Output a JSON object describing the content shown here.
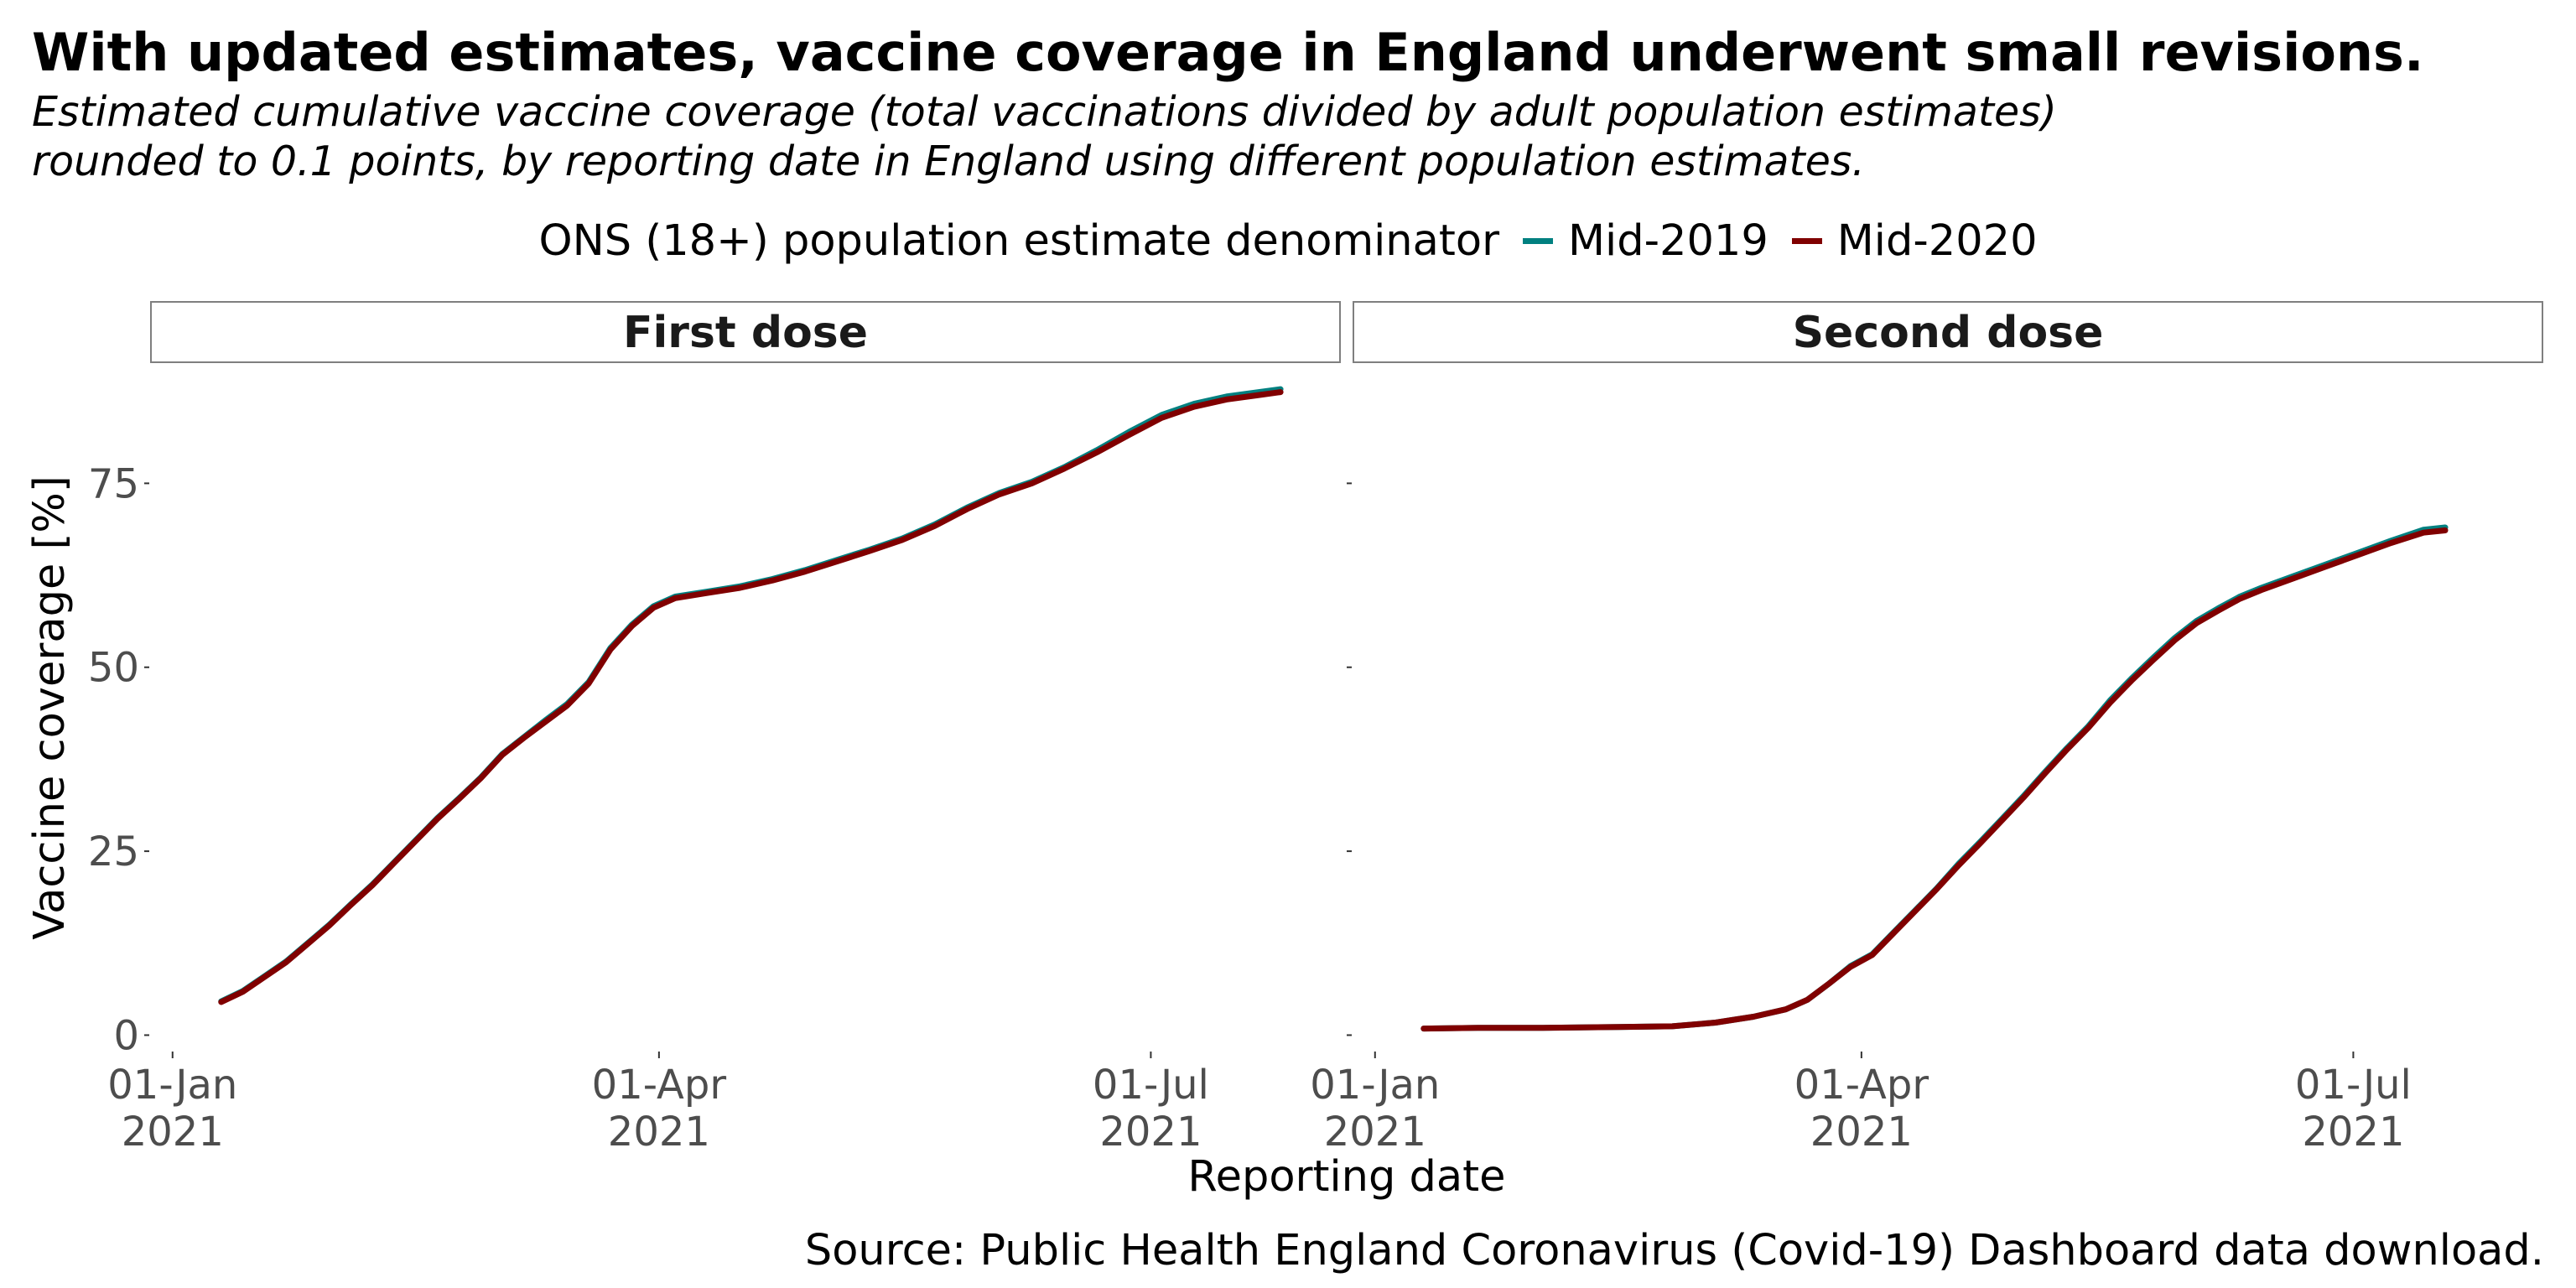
{
  "title": "With updated estimates, vaccine coverage in England underwent small revisions.",
  "subtitle_lines": [
    "Estimated cumulative vaccine coverage (total vaccinations divided by adult population estimates)",
    "rounded to 0.1 points, by reporting date in England using different population estimates."
  ],
  "legend": {
    "title": "ONS (18+) population estimate denominator",
    "items": [
      {
        "label": "Mid-2019",
        "color": "#008080"
      },
      {
        "label": "Mid-2020",
        "color": "#800000"
      }
    ]
  },
  "source": "Source: Public Health England Coronavirus (Covid-19) Dashboard data download.",
  "chart_data": {
    "type": "line",
    "xlabel": "Reporting date",
    "ylabel": "Vaccine coverage [%]",
    "ylim": [
      -2,
      91
    ],
    "y_ticks": [
      0,
      25,
      50,
      75
    ],
    "x_ticks": [
      {
        "date": "2021-01-01",
        "label_top": "01-Jan",
        "label_bottom": "2021"
      },
      {
        "date": "2021-04-01",
        "label_top": "01-Apr",
        "label_bottom": "2021"
      },
      {
        "date": "2021-07-01",
        "label_top": "01-Jul",
        "label_bottom": "2021"
      }
    ],
    "xlim": [
      "2020-12-28",
      "2021-08-05"
    ],
    "grid": false,
    "legend_position": "top",
    "panels": [
      {
        "name": "First dose",
        "series": [
          {
            "name": "Mid-2019",
            "color": "#008080",
            "points": [
              [
                "2021-01-10",
                4.6
              ],
              [
                "2021-01-14",
                6.0
              ],
              [
                "2021-01-18",
                8.0
              ],
              [
                "2021-01-22",
                10.0
              ],
              [
                "2021-01-26",
                12.5
              ],
              [
                "2021-01-30",
                15.0
              ],
              [
                "2021-02-03",
                17.8
              ],
              [
                "2021-02-07",
                20.5
              ],
              [
                "2021-02-11",
                23.5
              ],
              [
                "2021-02-15",
                26.5
              ],
              [
                "2021-02-19",
                29.5
              ],
              [
                "2021-02-23",
                32.2
              ],
              [
                "2021-02-27",
                35.0
              ],
              [
                "2021-03-03",
                38.2
              ],
              [
                "2021-03-07",
                40.5
              ],
              [
                "2021-03-11",
                42.8
              ],
              [
                "2021-03-15",
                45.0
              ],
              [
                "2021-03-19",
                48.0
              ],
              [
                "2021-03-23",
                52.6
              ],
              [
                "2021-03-27",
                55.8
              ],
              [
                "2021-03-31",
                58.3
              ],
              [
                "2021-04-04",
                59.6
              ],
              [
                "2021-04-10",
                60.3
              ],
              [
                "2021-04-16",
                61.0
              ],
              [
                "2021-04-22",
                62.0
              ],
              [
                "2021-04-28",
                63.2
              ],
              [
                "2021-05-04",
                64.6
              ],
              [
                "2021-05-10",
                66.0
              ],
              [
                "2021-05-16",
                67.5
              ],
              [
                "2021-05-22",
                69.4
              ],
              [
                "2021-05-28",
                71.7
              ],
              [
                "2021-06-03",
                73.7
              ],
              [
                "2021-06-09",
                75.2
              ],
              [
                "2021-06-15",
                77.2
              ],
              [
                "2021-06-21",
                79.5
              ],
              [
                "2021-06-27",
                82.0
              ],
              [
                "2021-07-03",
                84.3
              ],
              [
                "2021-07-09",
                85.8
              ],
              [
                "2021-07-15",
                86.8
              ],
              [
                "2021-07-21",
                87.4
              ],
              [
                "2021-07-25",
                87.8
              ]
            ]
          },
          {
            "name": "Mid-2020",
            "color": "#800000",
            "points": [
              [
                "2021-01-10",
                4.5
              ],
              [
                "2021-01-14",
                5.9
              ],
              [
                "2021-01-18",
                7.9
              ],
              [
                "2021-01-22",
                9.9
              ],
              [
                "2021-01-26",
                12.4
              ],
              [
                "2021-01-30",
                14.9
              ],
              [
                "2021-02-03",
                17.7
              ],
              [
                "2021-02-07",
                20.4
              ],
              [
                "2021-02-11",
                23.4
              ],
              [
                "2021-02-15",
                26.4
              ],
              [
                "2021-02-19",
                29.4
              ],
              [
                "2021-02-23",
                32.1
              ],
              [
                "2021-02-27",
                34.9
              ],
              [
                "2021-03-03",
                38.1
              ],
              [
                "2021-03-07",
                40.4
              ],
              [
                "2021-03-11",
                42.6
              ],
              [
                "2021-03-15",
                44.8
              ],
              [
                "2021-03-19",
                47.8
              ],
              [
                "2021-03-23",
                52.4
              ],
              [
                "2021-03-27",
                55.6
              ],
              [
                "2021-03-31",
                58.1
              ],
              [
                "2021-04-04",
                59.4
              ],
              [
                "2021-04-10",
                60.1
              ],
              [
                "2021-04-16",
                60.8
              ],
              [
                "2021-04-22",
                61.8
              ],
              [
                "2021-04-28",
                63.0
              ],
              [
                "2021-05-04",
                64.4
              ],
              [
                "2021-05-10",
                65.8
              ],
              [
                "2021-05-16",
                67.3
              ],
              [
                "2021-05-22",
                69.2
              ],
              [
                "2021-05-28",
                71.5
              ],
              [
                "2021-06-03",
                73.5
              ],
              [
                "2021-06-09",
                75.0
              ],
              [
                "2021-06-15",
                77.0
              ],
              [
                "2021-06-21",
                79.2
              ],
              [
                "2021-06-27",
                81.6
              ],
              [
                "2021-07-03",
                83.9
              ],
              [
                "2021-07-09",
                85.4
              ],
              [
                "2021-07-15",
                86.4
              ],
              [
                "2021-07-21",
                87.0
              ],
              [
                "2021-07-25",
                87.4
              ]
            ]
          }
        ]
      },
      {
        "name": "Second dose",
        "series": [
          {
            "name": "Mid-2019",
            "color": "#008080",
            "points": [
              [
                "2021-01-10",
                0.9
              ],
              [
                "2021-01-20",
                1.0
              ],
              [
                "2021-02-01",
                1.0
              ],
              [
                "2021-02-15",
                1.1
              ],
              [
                "2021-02-25",
                1.2
              ],
              [
                "2021-03-05",
                1.7
              ],
              [
                "2021-03-12",
                2.5
              ],
              [
                "2021-03-18",
                3.5
              ],
              [
                "2021-03-22",
                4.8
              ],
              [
                "2021-03-26",
                7.0
              ],
              [
                "2021-03-30",
                9.4
              ],
              [
                "2021-04-03",
                11.0
              ],
              [
                "2021-04-07",
                14.0
              ],
              [
                "2021-04-11",
                17.0
              ],
              [
                "2021-04-15",
                20.0
              ],
              [
                "2021-04-19",
                23.3
              ],
              [
                "2021-04-23",
                26.3
              ],
              [
                "2021-04-27",
                29.4
              ],
              [
                "2021-05-01",
                32.5
              ],
              [
                "2021-05-05",
                35.8
              ],
              [
                "2021-05-09",
                39.0
              ],
              [
                "2021-05-13",
                42.0
              ],
              [
                "2021-05-17",
                45.5
              ],
              [
                "2021-05-21",
                48.5
              ],
              [
                "2021-05-25",
                51.3
              ],
              [
                "2021-05-29",
                54.0
              ],
              [
                "2021-06-02",
                56.3
              ],
              [
                "2021-06-06",
                58.0
              ],
              [
                "2021-06-10",
                59.6
              ],
              [
                "2021-06-14",
                60.8
              ],
              [
                "2021-06-20",
                62.4
              ],
              [
                "2021-06-26",
                64.0
              ],
              [
                "2021-07-02",
                65.6
              ],
              [
                "2021-07-08",
                67.2
              ],
              [
                "2021-07-14",
                68.7
              ],
              [
                "2021-07-18",
                69.0
              ]
            ]
          },
          {
            "name": "Mid-2020",
            "color": "#800000",
            "points": [
              [
                "2021-01-10",
                0.9
              ],
              [
                "2021-01-20",
                1.0
              ],
              [
                "2021-02-01",
                1.0
              ],
              [
                "2021-02-15",
                1.1
              ],
              [
                "2021-02-25",
                1.2
              ],
              [
                "2021-03-05",
                1.7
              ],
              [
                "2021-03-12",
                2.5
              ],
              [
                "2021-03-18",
                3.5
              ],
              [
                "2021-03-22",
                4.8
              ],
              [
                "2021-03-26",
                7.0
              ],
              [
                "2021-03-30",
                9.3
              ],
              [
                "2021-04-03",
                10.9
              ],
              [
                "2021-04-07",
                13.9
              ],
              [
                "2021-04-11",
                16.9
              ],
              [
                "2021-04-15",
                19.9
              ],
              [
                "2021-04-19",
                23.1
              ],
              [
                "2021-04-23",
                26.1
              ],
              [
                "2021-04-27",
                29.2
              ],
              [
                "2021-05-01",
                32.3
              ],
              [
                "2021-05-05",
                35.6
              ],
              [
                "2021-05-09",
                38.8
              ],
              [
                "2021-05-13",
                41.8
              ],
              [
                "2021-05-17",
                45.2
              ],
              [
                "2021-05-21",
                48.2
              ],
              [
                "2021-05-25",
                51.0
              ],
              [
                "2021-05-29",
                53.7
              ],
              [
                "2021-06-02",
                56.0
              ],
              [
                "2021-06-06",
                57.7
              ],
              [
                "2021-06-10",
                59.3
              ],
              [
                "2021-06-14",
                60.5
              ],
              [
                "2021-06-20",
                62.1
              ],
              [
                "2021-06-26",
                63.7
              ],
              [
                "2021-07-02",
                65.3
              ],
              [
                "2021-07-08",
                66.9
              ],
              [
                "2021-07-14",
                68.3
              ],
              [
                "2021-07-18",
                68.6
              ]
            ]
          }
        ]
      }
    ]
  }
}
